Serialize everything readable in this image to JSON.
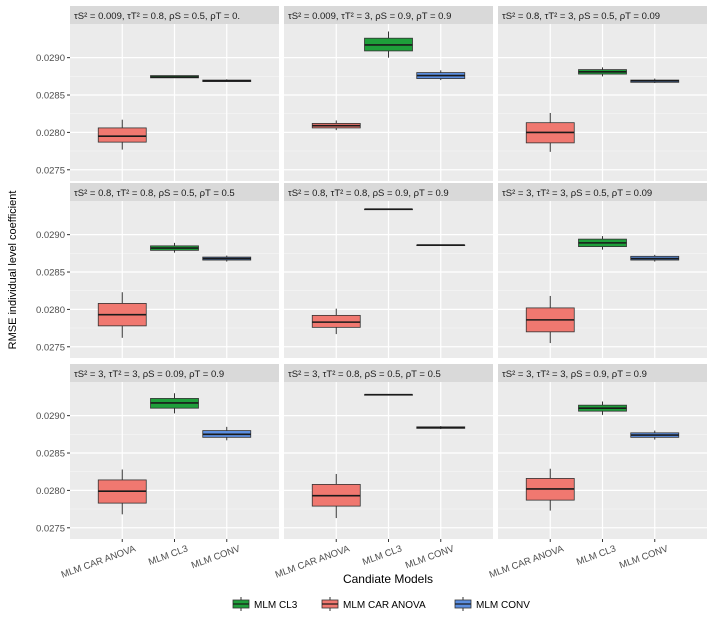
{
  "chart_data": {
    "type": "box",
    "ylabel": "RMSE individual level coefficient",
    "xlabel": "Candiate Models",
    "categories": [
      "MLM CAR ANOVA",
      "MLM CL3",
      "MLM CONV"
    ],
    "yticks": [
      0.0275,
      0.028,
      0.0285,
      0.029
    ],
    "ytick_labels": [
      "0.0275",
      "0.0280",
      "0.0285",
      "0.0290"
    ],
    "ylim": [
      0.02735,
      0.02945
    ],
    "grid": true,
    "legend": {
      "position": "bottom",
      "items": [
        {
          "label": "MLM CL3",
          "color": "#1e9e3a"
        },
        {
          "label": "MLM CAR ANOVA",
          "color": "#f07870"
        },
        {
          "label": "MLM CONV",
          "color": "#5b8ee0"
        }
      ]
    },
    "colors": [
      "#f07870",
      "#1e9e3a",
      "#5b8ee0"
    ],
    "panels": [
      {
        "strip": {
          "tauS": "0.009",
          "tauT": "0.8",
          "rhoS": "0.5",
          "rhoT": "0."
        },
        "boxes": [
          {
            "min": 0.02777,
            "q1": 0.02787,
            "median": 0.02795,
            "q3": 0.02806,
            "max": 0.02817
          },
          {
            "min": 0.02873,
            "q1": 0.02873,
            "median": 0.02874,
            "q3": 0.02876,
            "max": 0.02876
          },
          {
            "min": 0.02868,
            "q1": 0.02868,
            "median": 0.02869,
            "q3": 0.0287,
            "max": 0.02871
          }
        ]
      },
      {
        "strip": {
          "tauS": "0.009",
          "tauT": "3",
          "rhoS": "0.9",
          "rhoT": "0.9"
        },
        "boxes": [
          {
            "min": 0.02803,
            "q1": 0.02806,
            "median": 0.02809,
            "q3": 0.02812,
            "max": 0.02816
          },
          {
            "min": 0.029,
            "q1": 0.02909,
            "median": 0.02917,
            "q3": 0.02926,
            "max": 0.02935
          },
          {
            "min": 0.0287,
            "q1": 0.02872,
            "median": 0.02876,
            "q3": 0.0288,
            "max": 0.02883
          }
        ]
      },
      {
        "strip": {
          "tauS": "0.8",
          "tauT": "3",
          "rhoS": "0.5",
          "rhoT": "0.09"
        },
        "boxes": [
          {
            "min": 0.02774,
            "q1": 0.02786,
            "median": 0.028,
            "q3": 0.02813,
            "max": 0.02826
          },
          {
            "min": 0.02875,
            "q1": 0.02878,
            "median": 0.02881,
            "q3": 0.02884,
            "max": 0.02887
          },
          {
            "min": 0.02866,
            "q1": 0.02867,
            "median": 0.02869,
            "q3": 0.0287,
            "max": 0.02872
          }
        ]
      },
      {
        "strip": {
          "tauS": "0.8",
          "tauT": "0.8",
          "rhoS": "0.5",
          "rhoT": "0.5"
        },
        "boxes": [
          {
            "min": 0.02762,
            "q1": 0.02778,
            "median": 0.02793,
            "q3": 0.02808,
            "max": 0.02823
          },
          {
            "min": 0.02876,
            "q1": 0.02879,
            "median": 0.02882,
            "q3": 0.02885,
            "max": 0.02889
          },
          {
            "min": 0.02864,
            "q1": 0.02866,
            "median": 0.02868,
            "q3": 0.0287,
            "max": 0.02872
          }
        ]
      },
      {
        "strip": {
          "tauS": "0.8",
          "tauT": "0.8",
          "rhoS": "0.9",
          "rhoT": "0.9"
        },
        "boxes": [
          {
            "min": 0.02767,
            "q1": 0.02776,
            "median": 0.02783,
            "q3": 0.02792,
            "max": 0.02801
          },
          {
            "min": 0.02934,
            "q1": 0.02934,
            "median": 0.02934,
            "q3": 0.02934,
            "max": 0.02934
          },
          {
            "min": 0.02886,
            "q1": 0.02886,
            "median": 0.02886,
            "q3": 0.02886,
            "max": 0.02886
          }
        ]
      },
      {
        "strip": {
          "tauS": "3",
          "tauT": "3",
          "rhoS": "0.5",
          "rhoT": "0.09"
        },
        "boxes": [
          {
            "min": 0.02755,
            "q1": 0.0277,
            "median": 0.02786,
            "q3": 0.02802,
            "max": 0.02818
          },
          {
            "min": 0.0288,
            "q1": 0.02884,
            "median": 0.02889,
            "q3": 0.02894,
            "max": 0.02898
          },
          {
            "min": 0.02864,
            "q1": 0.02866,
            "median": 0.02868,
            "q3": 0.02871,
            "max": 0.02873
          }
        ]
      },
      {
        "strip": {
          "tauS": "3",
          "tauT": "3",
          "rhoS": "0.09",
          "rhoT": "0.9"
        },
        "boxes": [
          {
            "min": 0.02768,
            "q1": 0.02783,
            "median": 0.02799,
            "q3": 0.02814,
            "max": 0.02828
          },
          {
            "min": 0.02903,
            "q1": 0.0291,
            "median": 0.02917,
            "q3": 0.02923,
            "max": 0.0293
          },
          {
            "min": 0.02867,
            "q1": 0.02871,
            "median": 0.02875,
            "q3": 0.0288,
            "max": 0.02885
          }
        ]
      },
      {
        "strip": {
          "tauS": "3",
          "tauT": "0.8",
          "rhoS": "0.5",
          "rhoT": "0.5"
        },
        "boxes": [
          {
            "min": 0.02763,
            "q1": 0.02779,
            "median": 0.02793,
            "q3": 0.02808,
            "max": 0.02822
          },
          {
            "min": 0.02928,
            "q1": 0.02928,
            "median": 0.02928,
            "q3": 0.02928,
            "max": 0.02928
          },
          {
            "min": 0.02882,
            "q1": 0.02883,
            "median": 0.02884,
            "q3": 0.02885,
            "max": 0.02886
          }
        ]
      },
      {
        "strip": {
          "tauS": "3",
          "tauT": "3",
          "rhoS": "0.9",
          "rhoT": "0.9"
        },
        "boxes": [
          {
            "min": 0.02773,
            "q1": 0.02787,
            "median": 0.02802,
            "q3": 0.02816,
            "max": 0.02829
          },
          {
            "min": 0.02901,
            "q1": 0.02906,
            "median": 0.0291,
            "q3": 0.02914,
            "max": 0.02919
          },
          {
            "min": 0.02868,
            "q1": 0.02871,
            "median": 0.02874,
            "q3": 0.02877,
            "max": 0.0288
          }
        ]
      }
    ]
  }
}
